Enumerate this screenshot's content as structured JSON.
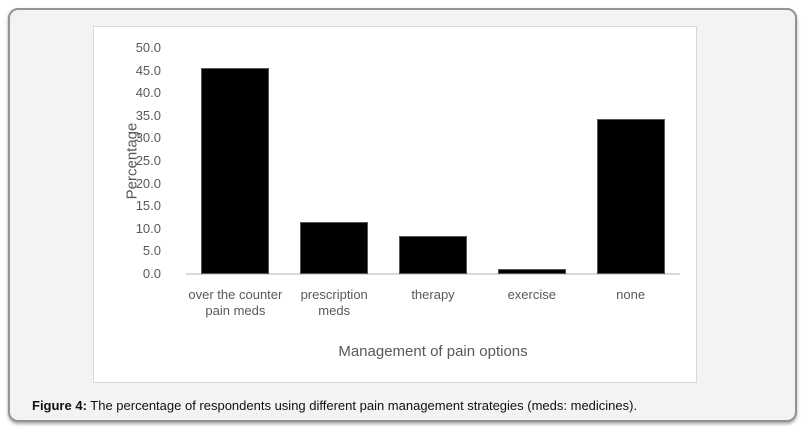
{
  "figure": {
    "caption_prefix": "Figure 4:",
    "caption_rest": " The percentage of respondents using different pain management strategies (meds: medicines)."
  },
  "chart_data": {
    "type": "bar",
    "title": "",
    "categories": [
      "over the counter pain meds",
      "prescription meds",
      "therapy",
      "exercise",
      "none"
    ],
    "values": [
      45.5,
      11.4,
      8.4,
      1.1,
      34.4
    ],
    "xlabel": "Management of pain options",
    "ylabel": "Percentage",
    "ylim": [
      0,
      50
    ],
    "ytick_step": 5,
    "ytick_labels": [
      "0.0",
      "5.0",
      "10.0",
      "15.0",
      "20.0",
      "25.0",
      "30.0",
      "35.0",
      "40.0",
      "45.0",
      "50.0"
    ],
    "grid": false,
    "legend": false,
    "bar_color": "#010101",
    "axis_text_color": "#595959",
    "axis_line_color": "#d9d9d9"
  }
}
